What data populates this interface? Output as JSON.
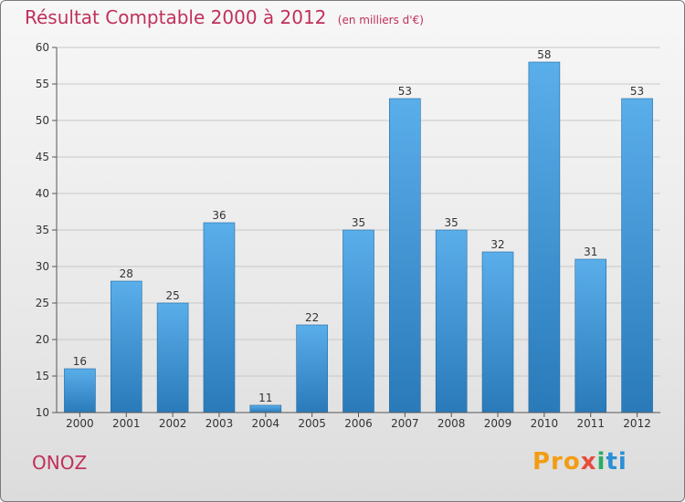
{
  "chart_data": {
    "type": "bar",
    "title": "Résultat Comptable 2000 à 2012",
    "unit_note": "(en milliers d'€)",
    "categories": [
      "2000",
      "2001",
      "2002",
      "2003",
      "2004",
      "2005",
      "2006",
      "2007",
      "2008",
      "2009",
      "2010",
      "2011",
      "2012"
    ],
    "values": [
      16,
      28,
      25,
      36,
      11,
      22,
      35,
      53,
      35,
      32,
      58,
      31,
      53
    ],
    "ylim": [
      10,
      60
    ],
    "yticks": [
      10,
      15,
      20,
      25,
      30,
      35,
      40,
      45,
      50,
      55,
      60
    ],
    "xlabel": "",
    "ylabel": "",
    "grid": true,
    "bar_color_top": "#5aaeea",
    "bar_color_bottom": "#2a7ab9"
  },
  "footer": {
    "commune": "ONOZ",
    "logo_parts": [
      "Pro",
      "x",
      "i",
      "ti"
    ]
  },
  "colors": {
    "title": "#c0305a",
    "grid": "#c8c8c8"
  }
}
